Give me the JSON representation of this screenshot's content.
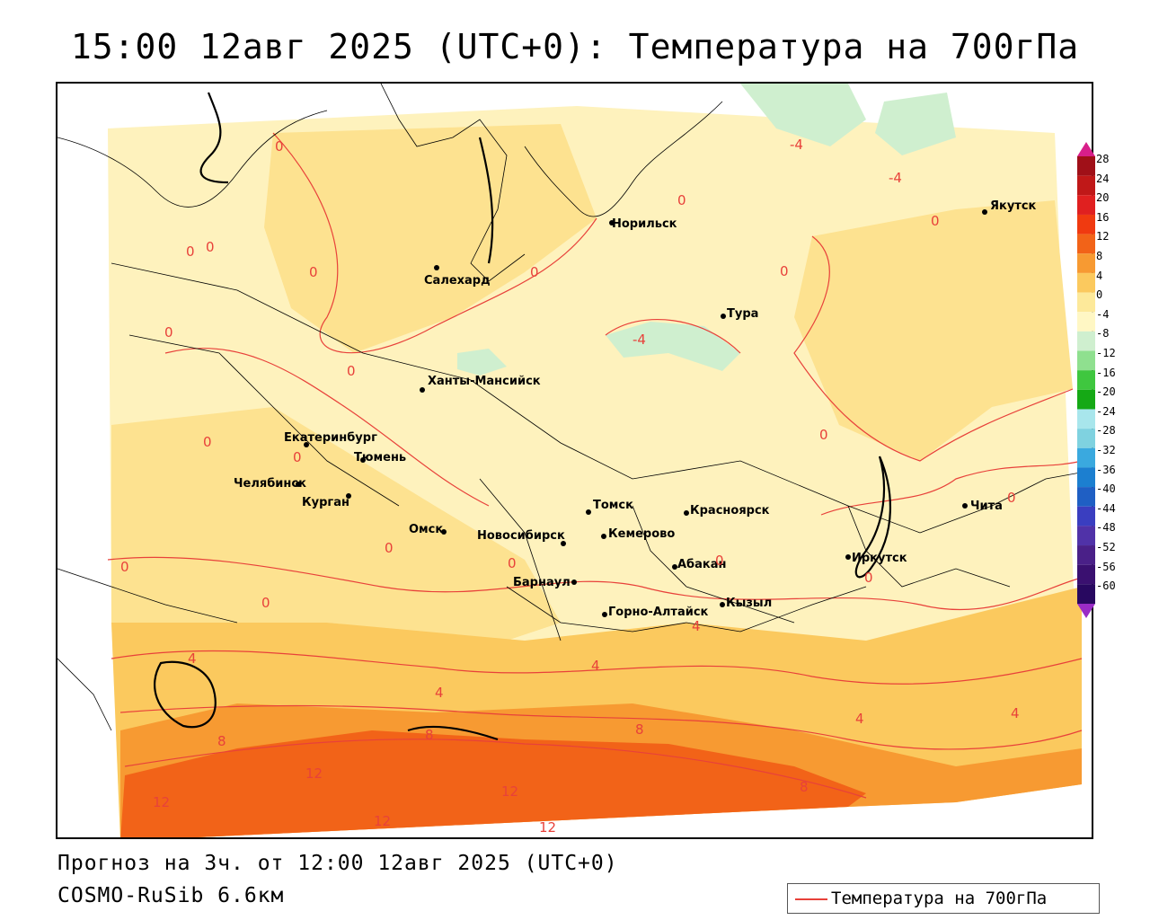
{
  "title": "15:00 12авг 2025 (UTC+0): Температура на 700гПа",
  "footer": {
    "forecast": "Прогноз на 3ч. от 12:00 12авг 2025 (UTC+0)",
    "model": "COSMO-RuSib 6.6км"
  },
  "legend": {
    "label": "Температура на 700гПа",
    "color": "#e8413a"
  },
  "colorbar": {
    "values": [
      "28",
      "24",
      "20",
      "16",
      "12",
      "8",
      "4",
      "0",
      "-4",
      "-8",
      "-12",
      "-16",
      "-20",
      "-24",
      "-28",
      "-32",
      "-36",
      "-40",
      "-44",
      "-48",
      "-52",
      "-56",
      "-60"
    ],
    "colors": [
      "#a01018",
      "#c01818",
      "#e02020",
      "#f03a10",
      "#f26318",
      "#f79a32",
      "#fbc95e",
      "#fde99a",
      "#fff7c4",
      "#cfefcf",
      "#8fe08f",
      "#3fc73f",
      "#15a915",
      "#a8e6ec",
      "#7fd2e0",
      "#3aa9df",
      "#1c7fd0",
      "#1f5fc4",
      "#3a3ec0",
      "#5032a8",
      "#4a2088",
      "#3a1070",
      "#280860"
    ],
    "top_color": "#d81f8a",
    "bottom_color": "#9a2cc6"
  },
  "cities": [
    {
      "name": "Якутск"
    },
    {
      "name": "Норильск"
    },
    {
      "name": "Салехард"
    },
    {
      "name": "Тура"
    },
    {
      "name": "Ханты-Мансийск"
    },
    {
      "name": "Екатеринбург"
    },
    {
      "name": "Тюмень"
    },
    {
      "name": "Челябинск"
    },
    {
      "name": "Курган"
    },
    {
      "name": "Омск"
    },
    {
      "name": "Томск"
    },
    {
      "name": "Красноярск"
    },
    {
      "name": "Новосибирск"
    },
    {
      "name": "Кемерово"
    },
    {
      "name": "Барнаул"
    },
    {
      "name": "Абакан"
    },
    {
      "name": "Горно-Алтайск"
    },
    {
      "name": "Кызыл"
    },
    {
      "name": "Иркутск"
    },
    {
      "name": "Чита"
    }
  ],
  "contour_labels": [
    "-4",
    "-4",
    "-4",
    "0",
    "0",
    "0",
    "0",
    "0",
    "0",
    "0",
    "0",
    "0",
    "0",
    "0",
    "0",
    "0",
    "0",
    "0",
    "0",
    "0",
    "0",
    "0",
    "0",
    "4",
    "4",
    "4",
    "4",
    "4",
    "4",
    "8",
    "8",
    "8",
    "8",
    "12",
    "12",
    "12",
    "12",
    "12"
  ]
}
